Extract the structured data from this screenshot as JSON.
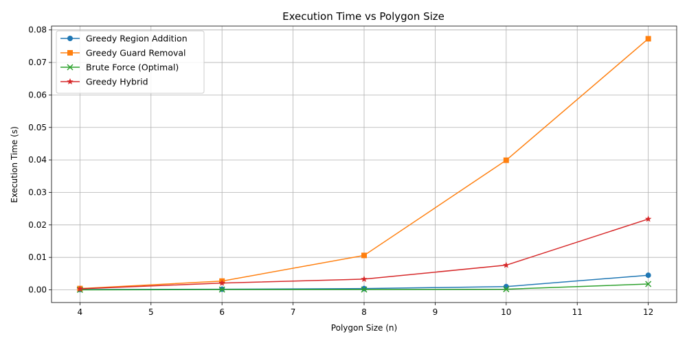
{
  "chart_data": {
    "type": "line",
    "title": "Execution Time vs Polygon Size",
    "xlabel": "Polygon Size (n)",
    "ylabel": "Execution Time (s)",
    "xlim": [
      3.6,
      12.4
    ],
    "ylim": [
      -0.0039,
      0.0812
    ],
    "xticks": [
      4,
      5,
      6,
      7,
      8,
      9,
      10,
      11,
      12
    ],
    "yticks": [
      0.0,
      0.01,
      0.02,
      0.03,
      0.04,
      0.05,
      0.06,
      0.07,
      0.08
    ],
    "ytick_labels": [
      "0.00",
      "0.01",
      "0.02",
      "0.03",
      "0.04",
      "0.05",
      "0.06",
      "0.07",
      "0.08"
    ],
    "grid": true,
    "legend": "top-left",
    "x": [
      4,
      6,
      8,
      10,
      12
    ],
    "series": [
      {
        "name": "Greedy Region Addition",
        "marker": "circle",
        "color": "#1f77b4",
        "values": [
          0.0001,
          0.0002,
          0.0004,
          0.001,
          0.0045
        ]
      },
      {
        "name": "Greedy Guard Removal",
        "marker": "square",
        "color": "#ff7f0e",
        "values": [
          0.0004,
          0.0027,
          0.0106,
          0.0399,
          0.0773
        ]
      },
      {
        "name": "Brute Force (Optimal)",
        "marker": "x",
        "color": "#2ca02c",
        "values": [
          0.0,
          0.0001,
          0.0001,
          0.0002,
          0.0018
        ]
      },
      {
        "name": "Greedy Hybrid",
        "marker": "star",
        "color": "#d62728",
        "values": [
          0.0003,
          0.0021,
          0.0033,
          0.0076,
          0.0218
        ]
      }
    ]
  }
}
